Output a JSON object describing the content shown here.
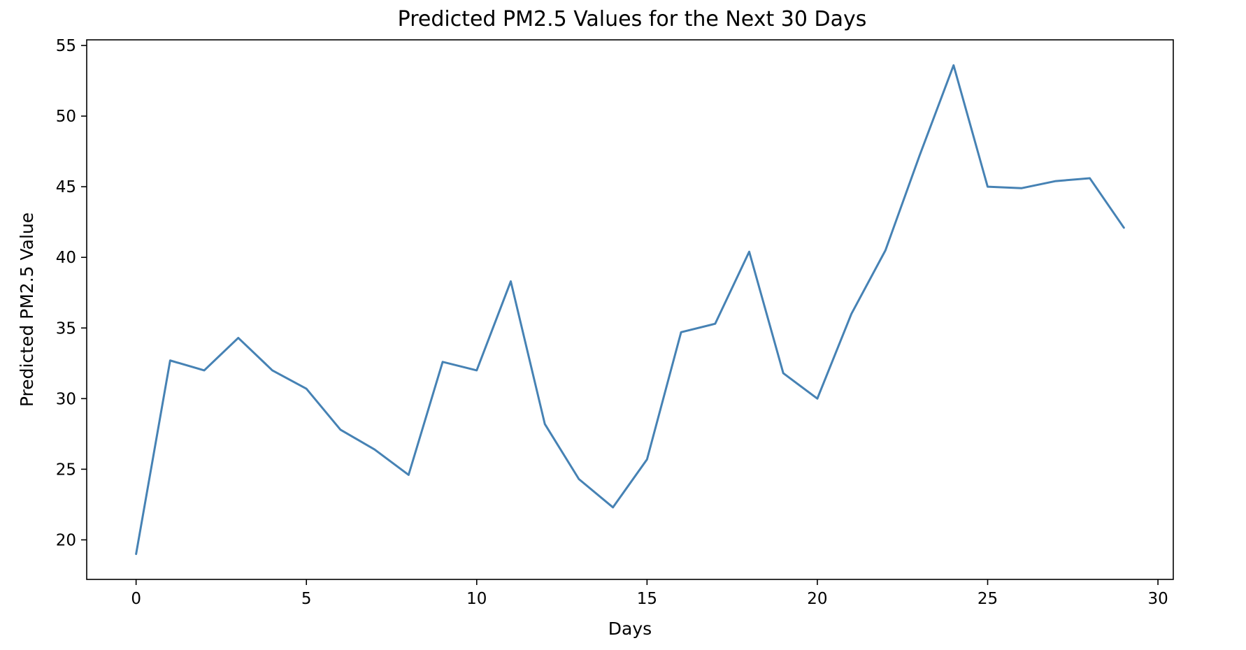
{
  "chart_data": {
    "type": "line",
    "title": "Predicted PM2.5 Values for the Next 30 Days",
    "xlabel": "Days",
    "ylabel": "Predicted PM2.5 Value",
    "xlim": [
      -1.45,
      30.45
    ],
    "ylim": [
      17.2,
      55.4
    ],
    "xticks": [
      0,
      5,
      10,
      15,
      20,
      25,
      30
    ],
    "yticks": [
      20,
      25,
      30,
      35,
      40,
      45,
      50,
      55
    ],
    "grid": false,
    "series": [
      {
        "color": "#4682b4",
        "x": [
          0,
          1,
          2,
          3,
          4,
          5,
          6,
          7,
          8,
          9,
          10,
          11,
          12,
          13,
          14,
          15,
          16,
          17,
          18,
          19,
          20,
          21,
          22,
          23,
          24,
          25,
          26,
          27,
          28,
          29
        ],
        "y": [
          19.0,
          32.7,
          32.0,
          34.3,
          32.0,
          30.7,
          27.8,
          26.4,
          24.6,
          32.6,
          32.0,
          38.3,
          28.2,
          24.3,
          22.3,
          25.7,
          34.7,
          35.3,
          40.4,
          31.8,
          30.0,
          36.0,
          40.5,
          47.2,
          53.6,
          45.0,
          44.9,
          45.4,
          45.6,
          42.1
        ]
      }
    ]
  }
}
